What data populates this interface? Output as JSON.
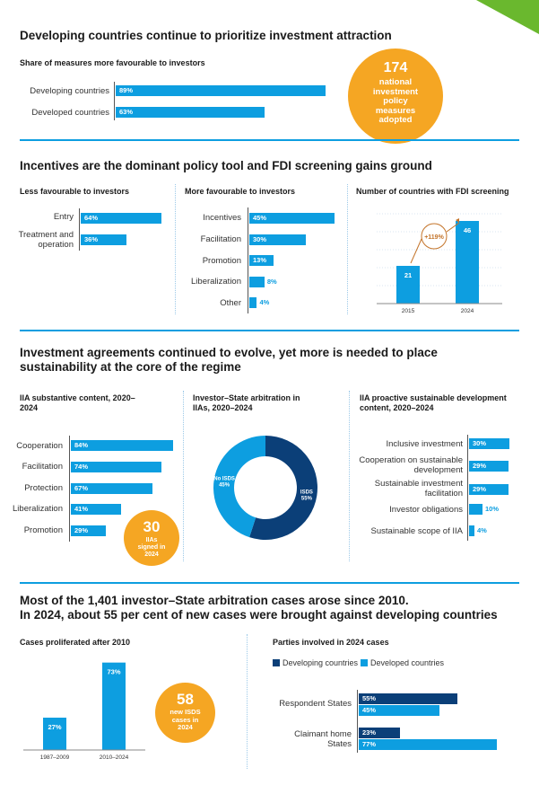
{
  "section1": {
    "title": "Developing countries continue to prioritize investment attraction",
    "subtitle": "Share of measures more favourable to investors",
    "bars": [
      {
        "label": "Developing countries",
        "value": 89,
        "text": "89%"
      },
      {
        "label": "Developed countries",
        "value": 63,
        "text": "63%"
      }
    ],
    "callout": {
      "number": "174",
      "text": "national investment policy measures adopted"
    }
  },
  "section2": {
    "title": "Incentives are the dominant policy tool and FDI screening gains ground",
    "less": {
      "title": "Less favourable to investors",
      "bars": [
        {
          "label": "Entry",
          "value": 64,
          "text": "64%"
        },
        {
          "label": "Treatment and operation",
          "value": 36,
          "text": "36%"
        }
      ]
    },
    "more": {
      "title": "More favourable to investors",
      "bars": [
        {
          "label": "Incentives",
          "value": 45,
          "text": "45%"
        },
        {
          "label": "Facilitation",
          "value": 30,
          "text": "30%"
        },
        {
          "label": "Promotion",
          "value": 13,
          "text": "13%"
        },
        {
          "label": "Liberalization",
          "value": 8,
          "text": "8%"
        },
        {
          "label": "Other",
          "value": 4,
          "text": "4%"
        }
      ]
    },
    "screening": {
      "title": "Number of countries with FDI screening",
      "years": [
        "2015",
        "2024"
      ],
      "values": [
        21,
        46
      ],
      "growth": "+119%"
    }
  },
  "section3": {
    "title": "Investment agreements continued to evolve, yet more is needed to place sustainability at the core of the regime",
    "iia": {
      "title": "IIA substantive content, 2020–2024",
      "bars": [
        {
          "label": "Cooperation",
          "value": 84,
          "text": "84%"
        },
        {
          "label": "Facilitation",
          "value": 74,
          "text": "74%"
        },
        {
          "label": "Protection",
          "value": 67,
          "text": "67%"
        },
        {
          "label": "Liberalization",
          "value": 41,
          "text": "41%"
        },
        {
          "label": "Promotion",
          "value": 29,
          "text": "29%"
        }
      ],
      "callout": {
        "number": "30",
        "text": "IIAs signed in 2024"
      }
    },
    "isds": {
      "title": "Investor–State arbitration in IIAs, 2020–2024",
      "slices": [
        {
          "label": "ISDS",
          "text": "55%",
          "value": 55,
          "color": "#0b3f78"
        },
        {
          "label": "No ISDS",
          "text": "45%",
          "value": 45,
          "color": "#0d9ee0"
        }
      ]
    },
    "proactive": {
      "title": "IIA proactive sustainable development content, 2020–2024",
      "bars": [
        {
          "label": "Inclusive investment",
          "value": 30,
          "text": "30%"
        },
        {
          "label": "Cooperation on sustainable development",
          "value": 29,
          "text": "29%"
        },
        {
          "label": "Sustainable investment facilitation",
          "value": 29,
          "text": "29%"
        },
        {
          "label": "Investor obligations",
          "value": 10,
          "text": "10%"
        },
        {
          "label": "Sustainable scope of IIA",
          "value": 4,
          "text": "4%"
        }
      ]
    }
  },
  "section4": {
    "title_line1": "Most of the 1,401 investor–State arbitration cases arose since 2010.",
    "title_line2": "In 2024, about 55 per cent of new cases were brought against developing countries",
    "cases": {
      "title": "Cases proliferated after 2010",
      "periods": [
        "1987–2009",
        "2010–2024"
      ],
      "values": [
        27,
        73
      ],
      "texts": [
        "27%",
        "73%"
      ],
      "callout": {
        "number": "58",
        "text": "new ISDS cases in 2024"
      }
    },
    "parties": {
      "title": "Parties involved in 2024 cases",
      "legend": [
        {
          "label": "Developing countries",
          "color": "#0b3f78"
        },
        {
          "label": "Developed countries",
          "color": "#0d9ee0"
        }
      ],
      "groups": [
        {
          "label": "Respondent States",
          "developing": 55,
          "developed": 45,
          "dev_text": "55%",
          "dvd_text": "45%"
        },
        {
          "label": "Claimant home States",
          "developing": 23,
          "developed": 77,
          "dev_text": "23%",
          "dvd_text": "77%"
        }
      ]
    }
  },
  "colors": {
    "accent": "#0d9ee0",
    "dark": "#0b3f78",
    "orange": "#f5a623",
    "green": "#6ab82e"
  },
  "chart_data": [
    {
      "type": "bar",
      "title": "Share of measures more favourable to investors",
      "categories": [
        "Developing countries",
        "Developed countries"
      ],
      "values": [
        89,
        63
      ]
    },
    {
      "type": "bar",
      "title": "Less favourable to investors",
      "categories": [
        "Entry",
        "Treatment and operation"
      ],
      "values": [
        64,
        36
      ]
    },
    {
      "type": "bar",
      "title": "More favourable to investors",
      "categories": [
        "Incentives",
        "Facilitation",
        "Promotion",
        "Liberalization",
        "Other"
      ],
      "values": [
        45,
        30,
        13,
        8,
        4
      ]
    },
    {
      "type": "bar",
      "title": "Number of countries with FDI screening",
      "categories": [
        "2015",
        "2024"
      ],
      "values": [
        21,
        46
      ]
    },
    {
      "type": "bar",
      "title": "IIA substantive content, 2020–2024",
      "categories": [
        "Cooperation",
        "Facilitation",
        "Protection",
        "Liberalization",
        "Promotion"
      ],
      "values": [
        84,
        74,
        67,
        41,
        29
      ]
    },
    {
      "type": "pie",
      "title": "Investor–State arbitration in IIAs, 2020–2024",
      "categories": [
        "ISDS",
        "No ISDS"
      ],
      "values": [
        55,
        45
      ]
    },
    {
      "type": "bar",
      "title": "IIA proactive sustainable development content, 2020–2024",
      "categories": [
        "Inclusive investment",
        "Cooperation on sustainable development",
        "Sustainable investment facilitation",
        "Investor obligations",
        "Sustainable scope of IIA"
      ],
      "values": [
        30,
        29,
        29,
        10,
        4
      ]
    },
    {
      "type": "bar",
      "title": "Cases proliferated after 2010",
      "categories": [
        "1987–2009",
        "2010–2024"
      ],
      "values": [
        27,
        73
      ]
    },
    {
      "type": "bar",
      "title": "Parties involved in 2024 cases",
      "categories": [
        "Respondent States",
        "Claimant home States"
      ],
      "series": [
        {
          "name": "Developing countries",
          "values": [
            55,
            23
          ]
        },
        {
          "name": "Developed countries",
          "values": [
            45,
            77
          ]
        }
      ]
    }
  ]
}
